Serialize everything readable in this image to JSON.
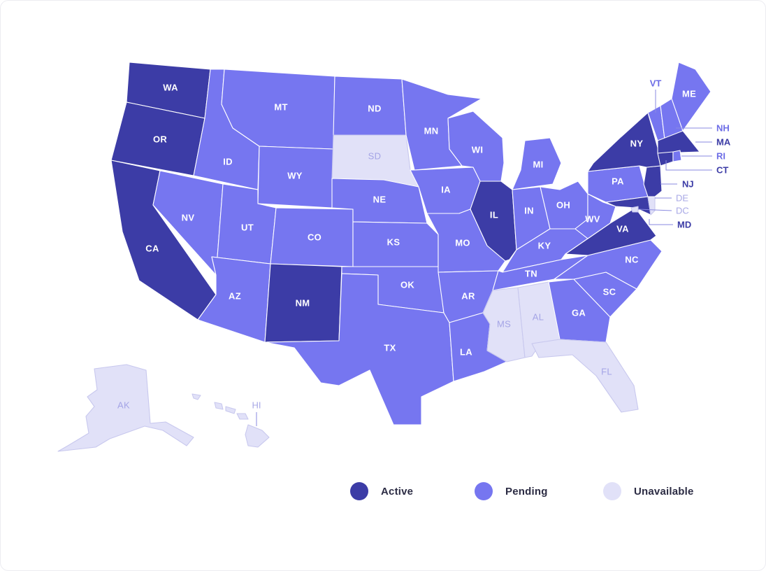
{
  "legend": {
    "items": [
      {
        "key": "active",
        "label": "Active",
        "color": "#3c3ca6"
      },
      {
        "key": "pending",
        "label": "Pending",
        "color": "#7676f0"
      },
      {
        "key": "unavailable",
        "label": "Unavailable",
        "color": "#e1e1f8"
      }
    ]
  },
  "states": {
    "WA": {
      "label": "WA",
      "status": "active"
    },
    "OR": {
      "label": "OR",
      "status": "active"
    },
    "CA": {
      "label": "CA",
      "status": "active"
    },
    "NV": {
      "label": "NV",
      "status": "pending"
    },
    "ID": {
      "label": "ID",
      "status": "pending"
    },
    "MT": {
      "label": "MT",
      "status": "pending"
    },
    "WY": {
      "label": "WY",
      "status": "pending"
    },
    "UT": {
      "label": "UT",
      "status": "pending"
    },
    "AZ": {
      "label": "AZ",
      "status": "pending"
    },
    "CO": {
      "label": "CO",
      "status": "pending"
    },
    "NM": {
      "label": "NM",
      "status": "active"
    },
    "ND": {
      "label": "ND",
      "status": "pending"
    },
    "SD": {
      "label": "SD",
      "status": "unavailable"
    },
    "NE": {
      "label": "NE",
      "status": "pending"
    },
    "KS": {
      "label": "KS",
      "status": "pending"
    },
    "OK": {
      "label": "OK",
      "status": "pending"
    },
    "TX": {
      "label": "TX",
      "status": "pending"
    },
    "MN": {
      "label": "MN",
      "status": "pending"
    },
    "IA": {
      "label": "IA",
      "status": "pending"
    },
    "MO": {
      "label": "MO",
      "status": "pending"
    },
    "AR": {
      "label": "AR",
      "status": "pending"
    },
    "LA": {
      "label": "LA",
      "status": "pending"
    },
    "WI": {
      "label": "WI",
      "status": "pending"
    },
    "IL": {
      "label": "IL",
      "status": "active"
    },
    "MI": {
      "label": "MI",
      "status": "pending"
    },
    "IN": {
      "label": "IN",
      "status": "pending"
    },
    "OH": {
      "label": "OH",
      "status": "pending"
    },
    "KY": {
      "label": "KY",
      "status": "pending"
    },
    "TN": {
      "label": "TN",
      "status": "pending"
    },
    "MS": {
      "label": "MS",
      "status": "unavailable"
    },
    "AL": {
      "label": "AL",
      "status": "unavailable"
    },
    "GA": {
      "label": "GA",
      "status": "pending"
    },
    "FL": {
      "label": "FL",
      "status": "unavailable"
    },
    "SC": {
      "label": "SC",
      "status": "pending"
    },
    "NC": {
      "label": "NC",
      "status": "pending"
    },
    "VA": {
      "label": "VA",
      "status": "active"
    },
    "WV": {
      "label": "WV",
      "status": "pending"
    },
    "PA": {
      "label": "PA",
      "status": "pending"
    },
    "NY": {
      "label": "NY",
      "status": "active"
    },
    "VT": {
      "label": "VT",
      "status": "pending"
    },
    "NH": {
      "label": "NH",
      "status": "pending"
    },
    "ME": {
      "label": "ME",
      "status": "pending"
    },
    "MA": {
      "label": "MA",
      "status": "active"
    },
    "RI": {
      "label": "RI",
      "status": "pending"
    },
    "CT": {
      "label": "CT",
      "status": "active"
    },
    "NJ": {
      "label": "NJ",
      "status": "active"
    },
    "DE": {
      "label": "DE",
      "status": "unavailable"
    },
    "MD": {
      "label": "MD",
      "status": "active"
    },
    "DC": {
      "label": "DC",
      "status": "unavailable"
    },
    "AK": {
      "label": "AK",
      "status": "unavailable"
    },
    "HI": {
      "label": "HI",
      "status": "unavailable"
    }
  }
}
